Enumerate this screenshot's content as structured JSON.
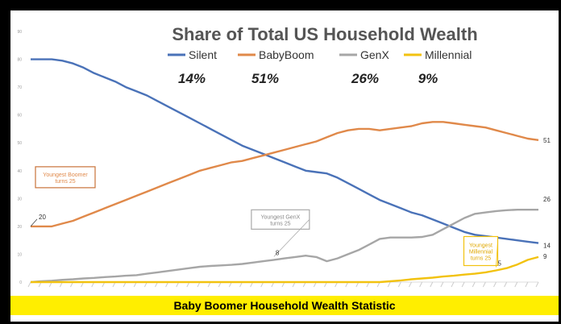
{
  "caption": "Baby Boomer Household Wealth Statistic",
  "chart_data": {
    "type": "line",
    "title": "Share of Total US Household Wealth",
    "xlabel": "",
    "ylabel": "",
    "ylim": [
      0,
      90
    ],
    "yticks": [
      "0",
      "10",
      "20",
      "30",
      "40",
      "50",
      "60",
      "70",
      "80",
      "90"
    ],
    "grid": false,
    "legend_placement": "top",
    "series": [
      {
        "name": "Silent",
        "color": "#4a72b8",
        "share_label": "14%",
        "end_label": "14",
        "values": [
          80,
          80,
          80,
          79.5,
          78.5,
          77,
          75,
          73.5,
          72,
          70,
          68.5,
          67,
          65,
          63,
          61,
          59,
          57,
          55,
          53,
          51,
          49,
          47.5,
          46,
          44.5,
          43,
          41.5,
          40,
          39.5,
          39,
          37.5,
          35.5,
          33.5,
          31.5,
          29.5,
          28,
          26.5,
          25,
          24,
          22.5,
          21,
          19.5,
          18,
          17,
          16.5,
          16,
          15.5,
          15,
          14.5,
          14
        ]
      },
      {
        "name": "BabyBoom",
        "color": "#e0894a",
        "share_label": "51%",
        "start_label": "20",
        "end_label": "51",
        "values": [
          20,
          20,
          20,
          21,
          22,
          23.5,
          25,
          26.5,
          28,
          29.5,
          31,
          32.5,
          34,
          35.5,
          37,
          38.5,
          40,
          41,
          42,
          43,
          43.5,
          44.5,
          45.5,
          46.5,
          47.5,
          48.5,
          49.5,
          50.5,
          52,
          53.5,
          54.5,
          55,
          55,
          54.5,
          55,
          55.5,
          56,
          57,
          57.5,
          57.5,
          57,
          56.5,
          56,
          55.5,
          54.5,
          53.5,
          52.5,
          51.5,
          51
        ]
      },
      {
        "name": "GenX",
        "color": "#a6a6a6",
        "share_label": "26%",
        "point_label": "8",
        "end_label": "26",
        "values": [
          0,
          0.3,
          0.5,
          0.8,
          1,
          1.3,
          1.5,
          1.8,
          2,
          2.3,
          2.5,
          3,
          3.5,
          4,
          4.5,
          5,
          5.5,
          5.8,
          6,
          6.2,
          6.5,
          7,
          7.5,
          8,
          8.5,
          9,
          9.5,
          9,
          7.5,
          8.5,
          10,
          11.5,
          13.5,
          15.5,
          16,
          16,
          16,
          16.2,
          17,
          19,
          21,
          23,
          24.5,
          25,
          25.5,
          25.8,
          26,
          26,
          26
        ]
      },
      {
        "name": "Millennial",
        "color": "#f2c20f",
        "share_label": "9%",
        "point_label": "5",
        "end_label": "9",
        "values": [
          0,
          0,
          0,
          0,
          0,
          0,
          0,
          0,
          0,
          0,
          0,
          0,
          0,
          0,
          0,
          0,
          0,
          0,
          0,
          0,
          0,
          0,
          0,
          0,
          0,
          0,
          0,
          0,
          0,
          0,
          0,
          0,
          0,
          0,
          0.3,
          0.6,
          1,
          1.3,
          1.6,
          2,
          2.3,
          2.7,
          3,
          3.5,
          4.2,
          5,
          6.3,
          8,
          9
        ]
      }
    ],
    "annotations": [
      {
        "text": "Youngest Boomer\nturns 25",
        "series": "BabyBoom",
        "index": 0
      },
      {
        "text": "Youngest GenX\nturns 25",
        "series": "GenX",
        "index": 23
      },
      {
        "text": "Youngest\nMillennial\nturns 25",
        "series": "Millennial",
        "index": 44
      }
    ]
  }
}
